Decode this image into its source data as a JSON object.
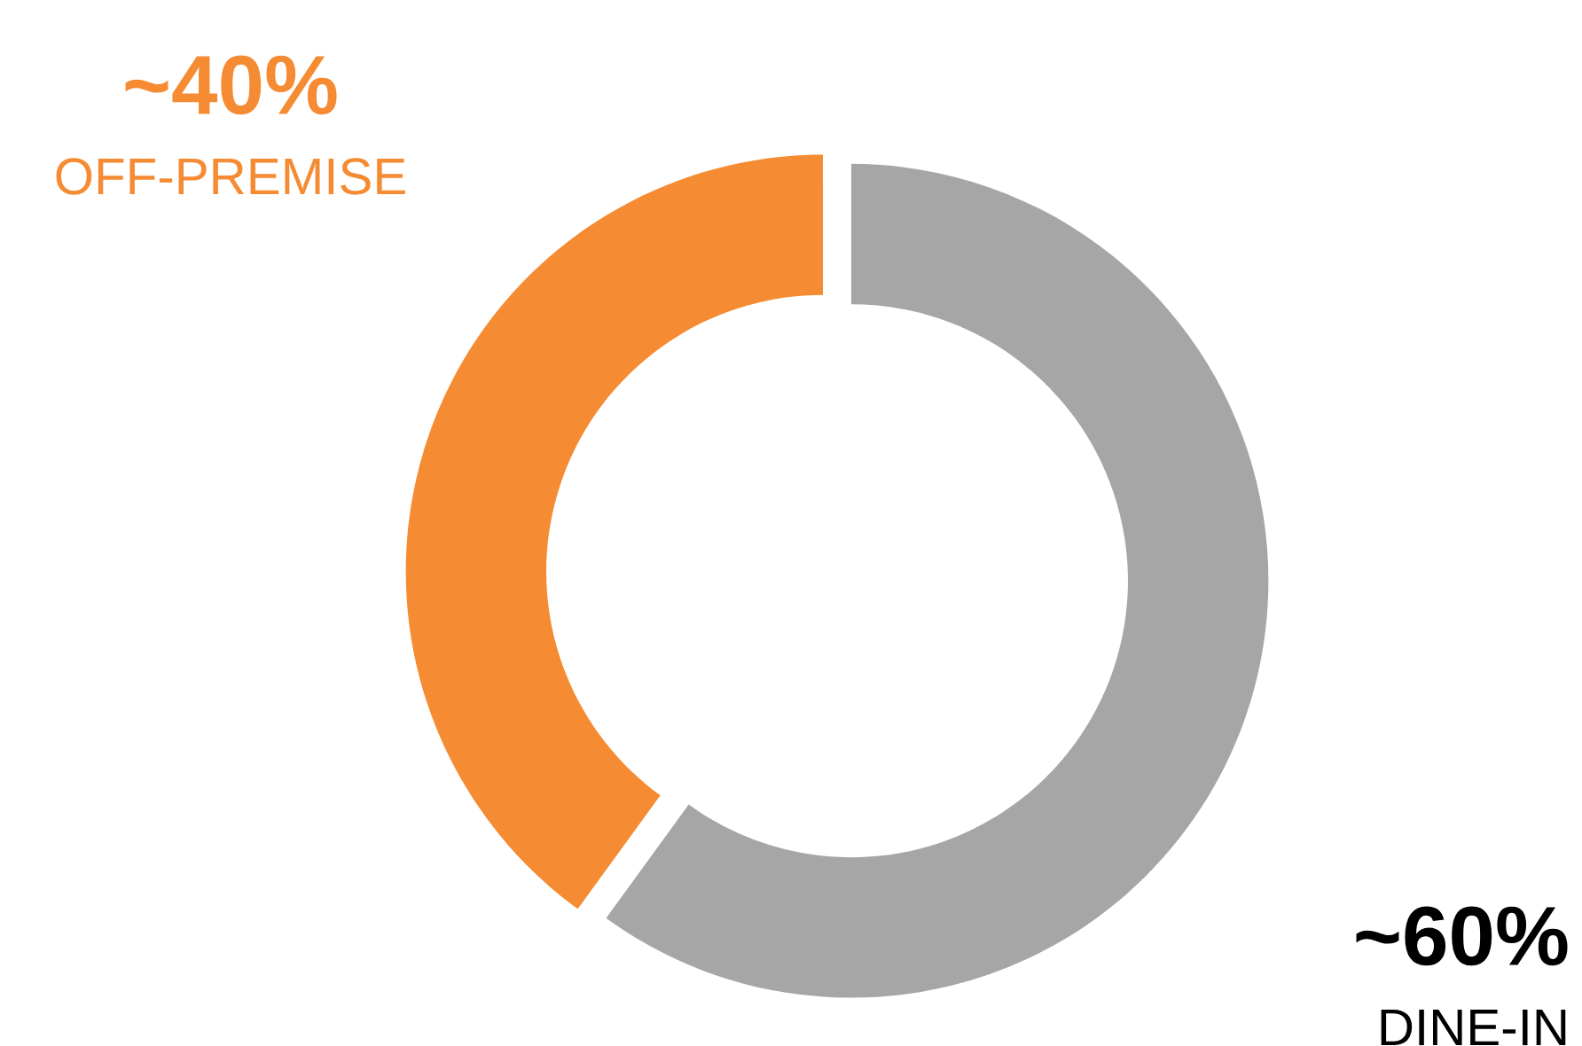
{
  "chart_data": {
    "type": "donut",
    "categories": [
      "DINE-IN",
      "OFF-PREMISE"
    ],
    "values": [
      60,
      40
    ],
    "colors": [
      "#a6a6a6",
      "#f58b32"
    ],
    "value_labels": [
      "~60%",
      "~40%"
    ]
  }
}
